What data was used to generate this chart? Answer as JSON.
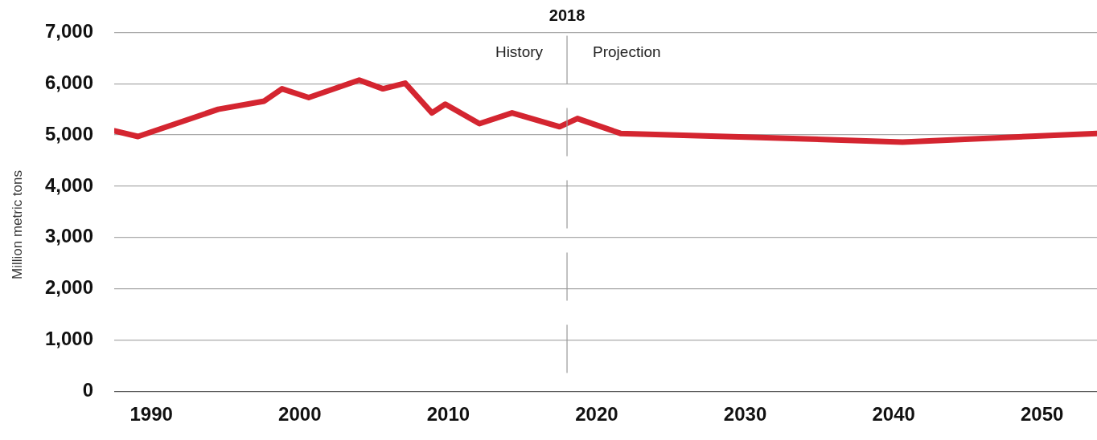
{
  "chart_data": {
    "type": "line",
    "ylabel": "Million metric tons",
    "x": [
      1987.5,
      1989.1,
      1994.5,
      1997.6,
      1998.8,
      2000.6,
      2004.0,
      2005.6,
      2007.1,
      2008.9,
      2009.8,
      2012.1,
      2014.3,
      2017.5,
      2018.7,
      2021.6,
      2031.0,
      2040.6,
      2053.7
    ],
    "series": [
      {
        "color": "#d42530",
        "values": [
          5080,
          4970,
          5500,
          5660,
          5900,
          5730,
          6070,
          5900,
          6010,
          5430,
          5600,
          5220,
          5430,
          5160,
          5320,
          5030,
          4950,
          4860,
          5030
        ]
      }
    ],
    "xlim": [
      1987.5,
      2053.7
    ],
    "xticks": [
      1990,
      2000,
      2010,
      2020,
      2030,
      2040,
      2050
    ],
    "ylim": [
      0,
      7000
    ],
    "yticks": [
      {
        "value": 0,
        "label": "0"
      },
      {
        "value": 1000,
        "label": "1,000"
      },
      {
        "value": 2000,
        "label": "2,000"
      },
      {
        "value": 3000,
        "label": "3,000"
      },
      {
        "value": 4000,
        "label": "4,000"
      },
      {
        "value": 5000,
        "label": "5,000"
      },
      {
        "value": 6000,
        "label": "6,000"
      },
      {
        "value": 7000,
        "label": "7,000"
      }
    ],
    "grid": "y",
    "legend": false,
    "marker": "none",
    "line_style": "solid",
    "ref_lines": [
      {
        "axis": "x",
        "value": 2018,
        "label": "2018",
        "color": "#999999",
        "line_style": "dashed"
      }
    ],
    "annotations": [
      "History",
      "Projection"
    ]
  }
}
